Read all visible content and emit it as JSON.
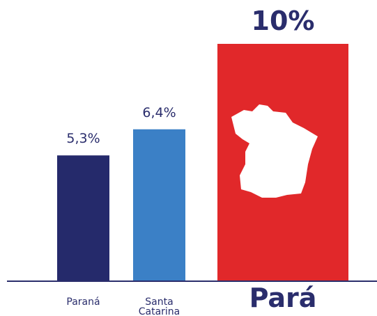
{
  "chart_data": {
    "type": "bar",
    "categories": [
      "Paraná",
      "Santa Catarina",
      "Pará"
    ],
    "values": [
      5.3,
      6.4,
      10
    ],
    "value_labels": [
      "5,3%",
      "6,4%",
      "10%"
    ],
    "colors": [
      "#252a6b",
      "#3b80c6",
      "#e1282a"
    ]
  }
}
